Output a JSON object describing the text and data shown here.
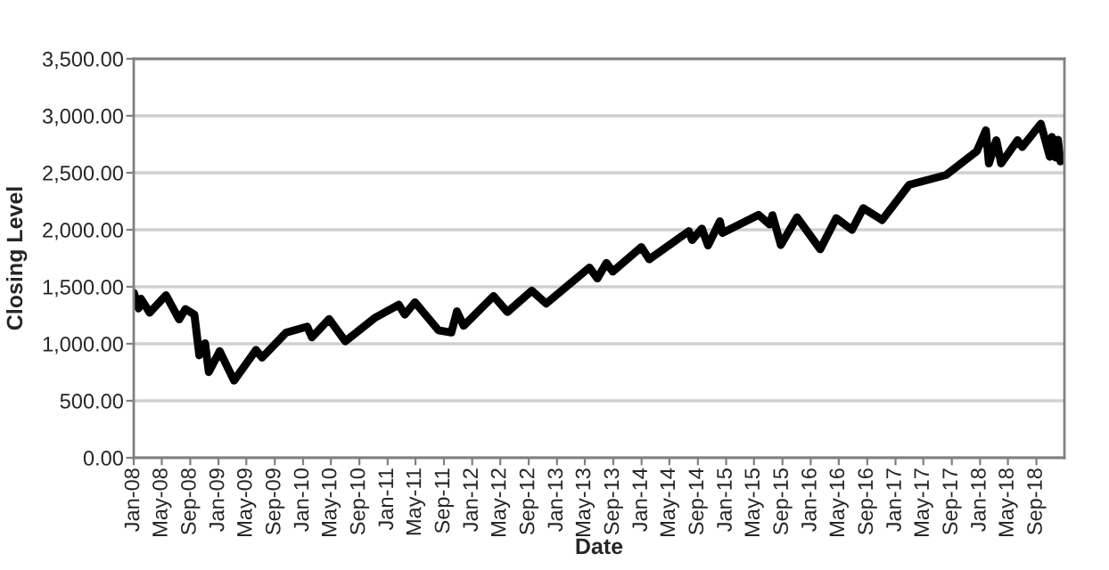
{
  "chart_data": {
    "type": "line",
    "xlabel": "Date",
    "ylabel": "Closing Level",
    "x": [
      "2008-01-02",
      "2008-01-22",
      "2008-02-01",
      "2008-03-10",
      "2008-05-19",
      "2008-07-15",
      "2008-08-11",
      "2008-09-19",
      "2008-10-10",
      "2008-11-04",
      "2008-11-20",
      "2009-01-06",
      "2009-03-09",
      "2009-06-12",
      "2009-07-08",
      "2009-10-19",
      "2010-01-19",
      "2010-02-08",
      "2010-04-23",
      "2010-07-02",
      "2010-11-05",
      "2011-02-18",
      "2011-03-16",
      "2011-04-29",
      "2011-08-08",
      "2011-10-03",
      "2011-10-27",
      "2011-11-25",
      "2012-04-02",
      "2012-06-01",
      "2012-09-14",
      "2012-11-15",
      "2013-05-21",
      "2013-06-24",
      "2013-08-02",
      "2013-08-30",
      "2013-12-31",
      "2014-02-03",
      "2014-07-24",
      "2014-08-07",
      "2014-09-18",
      "2014-10-15",
      "2014-12-05",
      "2014-12-16",
      "2015-05-21",
      "2015-07-08",
      "2015-07-20",
      "2015-08-25",
      "2015-11-03",
      "2016-02-11",
      "2016-04-20",
      "2016-06-27",
      "2016-08-15",
      "2016-11-04",
      "2017-03-01",
      "2017-08-07",
      "2017-12-18",
      "2018-01-26",
      "2018-02-08",
      "2018-03-12",
      "2018-04-02",
      "2018-06-12",
      "2018-07-02",
      "2018-09-20",
      "2018-10-29",
      "2018-11-07",
      "2018-11-23",
      "2018-12-03",
      "2018-12-14"
    ],
    "series": [
      {
        "color": "#000000",
        "values": [
          1447,
          1310,
          1395,
          1273,
          1426,
          1214,
          1305,
          1255,
          899,
          1005,
          752,
          935,
          677,
          946,
          879,
          1097,
          1150,
          1056,
          1217,
          1022,
          1225,
          1343,
          1256,
          1364,
          1119,
          1099,
          1285,
          1158,
          1419,
          1278,
          1466,
          1353,
          1669,
          1573,
          1709,
          1633,
          1848,
          1741,
          1988,
          1910,
          2011,
          1862,
          2075,
          1972,
          2131,
          2046,
          2128,
          1867,
          2109,
          1829,
          2102,
          2000,
          2190,
          2085,
          2395,
          2480,
          2690,
          2873,
          2581,
          2786,
          2582,
          2786,
          2726,
          2930,
          2641,
          2814,
          2633,
          2790,
          2600
        ]
      }
    ],
    "xlim": [
      "2008-01-01",
      "2018-12-31"
    ],
    "xticks": [
      {
        "value": "2008-01-01",
        "label": "Jan-08"
      },
      {
        "value": "2008-05-01",
        "label": "May-08"
      },
      {
        "value": "2008-09-01",
        "label": "Sep-08"
      },
      {
        "value": "2009-01-01",
        "label": "Jan-09"
      },
      {
        "value": "2009-05-01",
        "label": "May-09"
      },
      {
        "value": "2009-09-01",
        "label": "Sep-09"
      },
      {
        "value": "2010-01-01",
        "label": "Jan-10"
      },
      {
        "value": "2010-05-01",
        "label": "May-10"
      },
      {
        "value": "2010-09-01",
        "label": "Sep-10"
      },
      {
        "value": "2011-01-01",
        "label": "Jan-11"
      },
      {
        "value": "2011-05-01",
        "label": "May-11"
      },
      {
        "value": "2011-09-01",
        "label": "Sep-11"
      },
      {
        "value": "2012-01-01",
        "label": "Jan-12"
      },
      {
        "value": "2012-05-01",
        "label": "May-12"
      },
      {
        "value": "2012-09-01",
        "label": "Sep-12"
      },
      {
        "value": "2013-01-01",
        "label": "Jan-13"
      },
      {
        "value": "2013-05-01",
        "label": "May-13"
      },
      {
        "value": "2013-09-01",
        "label": "Sep-13"
      },
      {
        "value": "2014-01-01",
        "label": "Jan-14"
      },
      {
        "value": "2014-05-01",
        "label": "May-14"
      },
      {
        "value": "2014-09-01",
        "label": "Sep-14"
      },
      {
        "value": "2015-01-01",
        "label": "Jan-15"
      },
      {
        "value": "2015-05-01",
        "label": "May-15"
      },
      {
        "value": "2015-09-01",
        "label": "Sep-15"
      },
      {
        "value": "2016-01-01",
        "label": "Jan-16"
      },
      {
        "value": "2016-05-01",
        "label": "May-16"
      },
      {
        "value": "2016-09-01",
        "label": "Sep-16"
      },
      {
        "value": "2017-01-01",
        "label": "Jan-17"
      },
      {
        "value": "2017-05-01",
        "label": "May-17"
      },
      {
        "value": "2017-09-01",
        "label": "Sep-17"
      },
      {
        "value": "2018-01-01",
        "label": "Jan-18"
      },
      {
        "value": "2018-05-01",
        "label": "May-18"
      },
      {
        "value": "2018-09-01",
        "label": "Sep-18"
      }
    ],
    "ylim": [
      0,
      3500
    ],
    "yticks": [
      {
        "value": 0,
        "label": "0.00"
      },
      {
        "value": 500,
        "label": "500.00"
      },
      {
        "value": 1000,
        "label": "1,000.00"
      },
      {
        "value": 1500,
        "label": "1,500.00"
      },
      {
        "value": 2000,
        "label": "2,000.00"
      },
      {
        "value": 2500,
        "label": "2,500.00"
      },
      {
        "value": 3000,
        "label": "3,000.00"
      },
      {
        "value": 3500,
        "label": "3,500.00"
      }
    ],
    "grid": "y",
    "marker": "none",
    "line_style": "solid",
    "legend": false
  }
}
